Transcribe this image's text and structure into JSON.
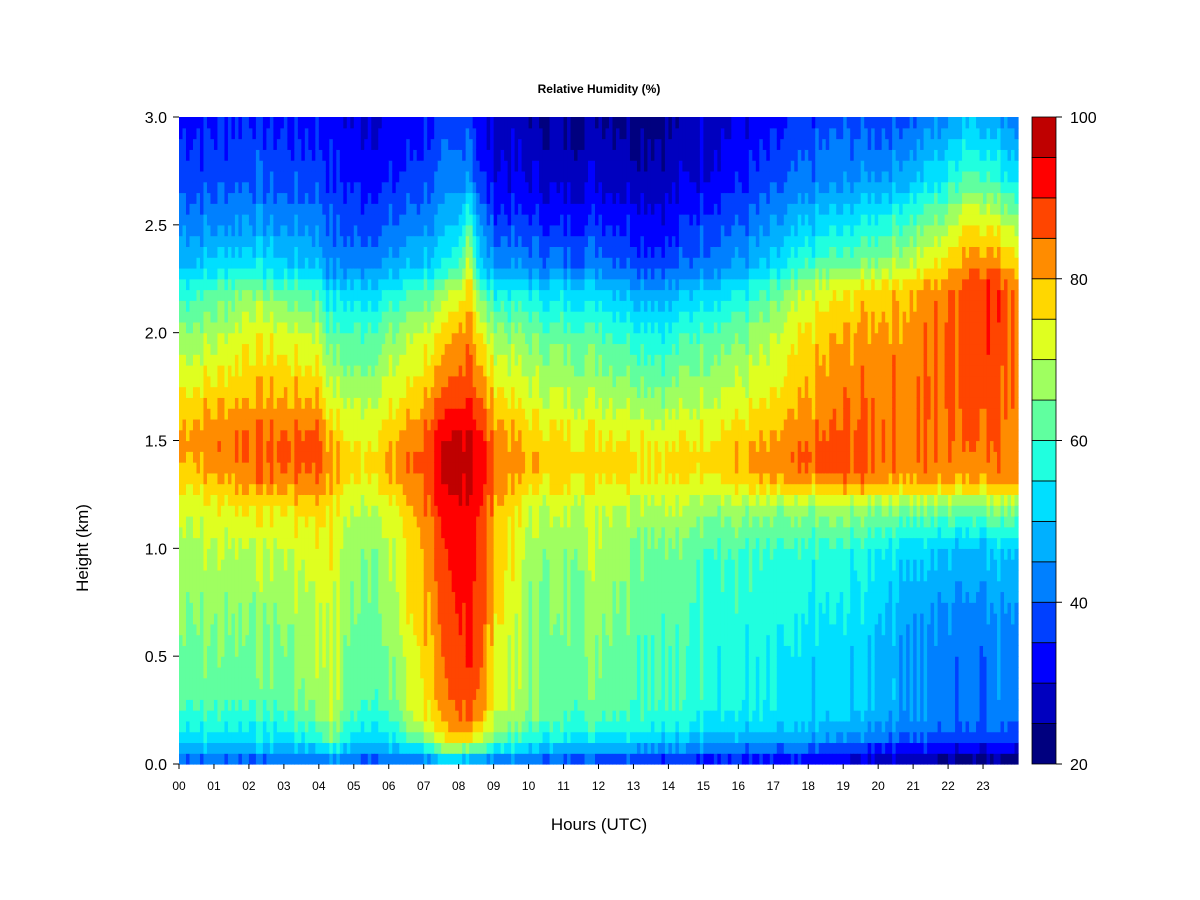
{
  "chart_data": {
    "type": "heatmap",
    "title": "Relative Humidity (%)",
    "xlabel": "Hours (UTC)",
    "ylabel": "Height (km)",
    "x_ticks": [
      "00",
      "01",
      "02",
      "03",
      "04",
      "05",
      "06",
      "07",
      "08",
      "09",
      "10",
      "11",
      "12",
      "13",
      "14",
      "15",
      "16",
      "17",
      "18",
      "19",
      "20",
      "21",
      "22",
      "23"
    ],
    "y_ticks": [
      "0.0",
      "0.5",
      "1.0",
      "1.5",
      "2.0",
      "2.5",
      "3.0"
    ],
    "xlim": [
      0,
      24
    ],
    "ylim": [
      0,
      3.0
    ],
    "colorbar": {
      "range": [
        20,
        100
      ],
      "step": 5,
      "ticks": [
        "20",
        "40",
        "60",
        "80",
        "100"
      ],
      "colors": [
        "#00007f",
        "#0000bf",
        "#0000ff",
        "#0040ff",
        "#0080ff",
        "#00b0ff",
        "#00dfff",
        "#20ffdf",
        "#60ff9f",
        "#9fff60",
        "#dfff20",
        "#ffd700",
        "#ff8c00",
        "#ff4500",
        "#ff0000",
        "#bf0000"
      ]
    },
    "height_levels_km": [
      0.0,
      0.05,
      0.1,
      0.2,
      0.3,
      0.5,
      0.7,
      1.0,
      1.2,
      1.3,
      1.4,
      1.5,
      1.7,
      2.0,
      2.2,
      2.3,
      2.5,
      2.7,
      3.0
    ],
    "hours": [
      0,
      1,
      2,
      3,
      4,
      4.3,
      5,
      6,
      7,
      7.5,
      8,
      8.3,
      8.6,
      9,
      10,
      11,
      12,
      13,
      14,
      15,
      16,
      17,
      18,
      19,
      20,
      21,
      22,
      22.5,
      23,
      23.8
    ],
    "rh_profiles": [
      [
        38,
        45,
        52,
        58,
        62,
        64,
        66,
        68,
        72,
        76,
        80,
        82,
        76,
        66,
        58,
        50,
        44,
        38,
        34
      ],
      [
        38,
        45,
        52,
        58,
        62,
        64,
        66,
        70,
        74,
        78,
        82,
        84,
        78,
        68,
        60,
        52,
        44,
        38,
        34
      ],
      [
        38,
        45,
        52,
        58,
        62,
        64,
        66,
        70,
        76,
        82,
        86,
        86,
        80,
        74,
        66,
        56,
        46,
        40,
        36
      ],
      [
        38,
        46,
        52,
        58,
        62,
        64,
        66,
        70,
        76,
        82,
        86,
        86,
        80,
        72,
        62,
        52,
        44,
        38,
        34
      ],
      [
        38,
        46,
        56,
        64,
        68,
        70,
        70,
        74,
        78,
        84,
        88,
        88,
        80,
        70,
        60,
        50,
        44,
        38,
        34
      ],
      [
        40,
        50,
        62,
        70,
        72,
        72,
        72,
        74,
        76,
        80,
        82,
        80,
        72,
        62,
        52,
        44,
        40,
        36,
        32
      ],
      [
        38,
        44,
        52,
        58,
        62,
        62,
        64,
        66,
        70,
        74,
        76,
        74,
        68,
        60,
        52,
        44,
        38,
        34,
        30
      ],
      [
        38,
        44,
        52,
        58,
        62,
        64,
        66,
        68,
        72,
        78,
        80,
        78,
        72,
        64,
        54,
        46,
        40,
        34,
        30
      ],
      [
        40,
        50,
        62,
        74,
        76,
        78,
        80,
        82,
        84,
        86,
        88,
        86,
        80,
        72,
        62,
        52,
        44,
        38,
        34
      ],
      [
        42,
        56,
        70,
        78,
        80,
        82,
        84,
        86,
        90,
        92,
        94,
        92,
        84,
        74,
        64,
        54,
        46,
        40,
        36
      ],
      [
        44,
        60,
        76,
        84,
        86,
        88,
        90,
        92,
        94,
        96,
        98,
        96,
        88,
        80,
        70,
        58,
        50,
        42,
        36
      ],
      [
        44,
        58,
        74,
        86,
        90,
        92,
        94,
        96,
        96,
        98,
        98,
        98,
        92,
        86,
        80,
        76,
        64,
        48,
        40
      ],
      [
        42,
        54,
        68,
        80,
        84,
        86,
        88,
        88,
        90,
        92,
        94,
        92,
        84,
        74,
        62,
        52,
        44,
        36,
        30
      ],
      [
        40,
        50,
        62,
        70,
        74,
        76,
        78,
        80,
        82,
        84,
        86,
        84,
        78,
        68,
        56,
        46,
        38,
        32,
        28
      ],
      [
        38,
        46,
        56,
        64,
        66,
        66,
        66,
        68,
        72,
        76,
        80,
        78,
        72,
        64,
        54,
        44,
        36,
        30,
        26
      ],
      [
        36,
        44,
        52,
        60,
        62,
        62,
        64,
        66,
        70,
        76,
        78,
        76,
        70,
        62,
        52,
        42,
        34,
        28,
        24
      ],
      [
        36,
        44,
        52,
        62,
        64,
        66,
        68,
        70,
        72,
        76,
        78,
        76,
        70,
        62,
        52,
        44,
        36,
        30,
        26
      ],
      [
        36,
        44,
        52,
        60,
        62,
        62,
        64,
        66,
        70,
        76,
        78,
        76,
        68,
        58,
        48,
        40,
        34,
        28,
        24
      ],
      [
        34,
        40,
        48,
        58,
        60,
        60,
        62,
        64,
        70,
        74,
        76,
        74,
        66,
        56,
        46,
        38,
        32,
        28,
        24
      ],
      [
        34,
        40,
        48,
        56,
        58,
        58,
        60,
        62,
        68,
        74,
        78,
        76,
        70,
        62,
        52,
        44,
        38,
        32,
        28
      ],
      [
        32,
        38,
        46,
        54,
        56,
        56,
        58,
        60,
        68,
        76,
        80,
        78,
        72,
        64,
        54,
        46,
        40,
        34,
        30
      ],
      [
        30,
        36,
        44,
        52,
        54,
        54,
        56,
        58,
        66,
        78,
        82,
        80,
        74,
        68,
        60,
        52,
        44,
        38,
        32
      ],
      [
        30,
        36,
        44,
        50,
        52,
        52,
        54,
        58,
        66,
        80,
        86,
        84,
        80,
        76,
        70,
        60,
        50,
        42,
        36
      ],
      [
        28,
        34,
        42,
        50,
        52,
        52,
        54,
        58,
        68,
        82,
        88,
        86,
        84,
        80,
        74,
        64,
        54,
        44,
        38
      ],
      [
        26,
        32,
        40,
        48,
        50,
        50,
        52,
        56,
        68,
        82,
        86,
        86,
        84,
        82,
        78,
        68,
        58,
        46,
        38
      ],
      [
        24,
        30,
        38,
        44,
        46,
        44,
        46,
        52,
        66,
        80,
        84,
        84,
        84,
        82,
        80,
        72,
        62,
        50,
        40
      ],
      [
        22,
        28,
        36,
        42,
        42,
        42,
        44,
        50,
        66,
        80,
        84,
        84,
        86,
        86,
        84,
        78,
        68,
        56,
        44
      ],
      [
        22,
        28,
        36,
        42,
        42,
        42,
        44,
        50,
        66,
        80,
        84,
        86,
        88,
        88,
        88,
        84,
        76,
        64,
        50
      ],
      [
        22,
        28,
        36,
        42,
        42,
        42,
        44,
        50,
        66,
        80,
        84,
        86,
        88,
        90,
        92,
        86,
        76,
        62,
        48
      ],
      [
        22,
        28,
        36,
        42,
        44,
        44,
        46,
        52,
        68,
        82,
        84,
        84,
        86,
        86,
        86,
        80,
        70,
        56,
        44
      ]
    ]
  }
}
